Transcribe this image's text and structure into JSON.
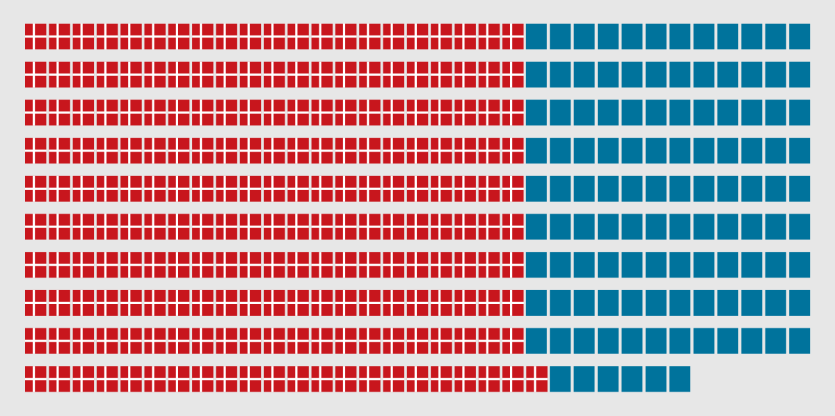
{
  "colors": {
    "background": "#e7e7e7",
    "flag_red": "#c8161d",
    "flag_cross": "#ffffff",
    "square_blue": "#00739c"
  },
  "chart_data": {
    "type": "pictogram",
    "rows": [
      {
        "flags": 21,
        "squares": 12
      },
      {
        "flags": 21,
        "squares": 12
      },
      {
        "flags": 21,
        "squares": 12
      },
      {
        "flags": 21,
        "squares": 12
      },
      {
        "flags": 21,
        "squares": 12
      },
      {
        "flags": 21,
        "squares": 12
      },
      {
        "flags": 21,
        "squares": 12
      },
      {
        "flags": 21,
        "squares": 12
      },
      {
        "flags": 21,
        "squares": 12
      },
      {
        "flags": 22,
        "squares": 6
      }
    ],
    "totals": {
      "flags": 211,
      "squares": 114
    },
    "series": [
      {
        "icon": "danish-flag-icon",
        "count": 211
      },
      {
        "icon": "blue-square-icon",
        "count": 114
      }
    ]
  }
}
